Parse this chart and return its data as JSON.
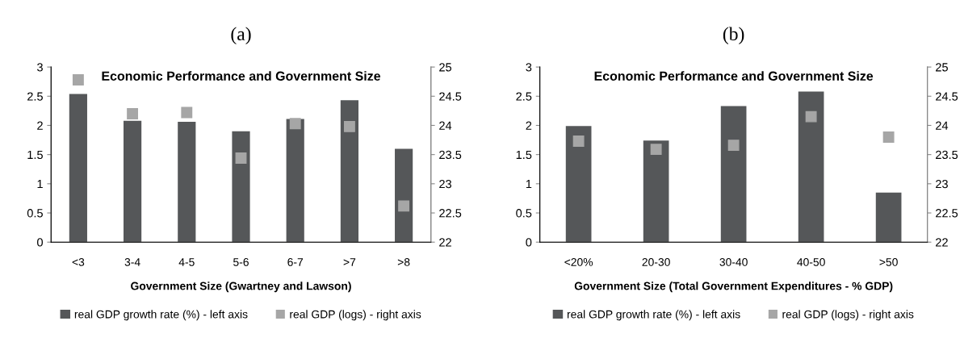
{
  "chart_data": [
    {
      "type": "bar",
      "title": "Economic Performance and Government Size",
      "xlabel": "Government Size (Gwartney and Lawson)",
      "annotations": [
        "(a)"
      ],
      "categories": [
        "<3",
        "3-4",
        "4-5",
        "5-6",
        "6-7",
        ">7",
        ">8"
      ],
      "series": [
        {
          "name": "real GDP growth rate (%) - left axis",
          "color": "#555759",
          "values": [
            2.54,
            2.08,
            2.06,
            1.9,
            2.11,
            2.43,
            1.6
          ]
        },
        {
          "name": "real GDP (logs) - right axis",
          "type": "scatter",
          "axis": "y2",
          "color": "#a6a6a6",
          "values": [
            24.78,
            24.2,
            24.22,
            23.44,
            24.03,
            23.98,
            22.62
          ]
        }
      ],
      "ylim": [
        0,
        3
      ],
      "yticks": [
        0,
        0.5,
        1,
        1.5,
        2,
        2.5,
        3
      ],
      "y2lim": [
        22,
        25
      ],
      "y2ticks": [
        22,
        22.5,
        23,
        23.5,
        24,
        24.5,
        25
      ],
      "marker": "square",
      "grid": false,
      "legend": "bottom"
    },
    {
      "type": "bar",
      "title": "Economic Performance and Government Size",
      "xlabel": "Government Size (Total Government Expenditures - % GDP)",
      "annotations": [
        "(b)"
      ],
      "categories": [
        "<20%",
        "20-30",
        "30-40",
        "40-50",
        ">50"
      ],
      "series": [
        {
          "name": "real GDP growth rate (%) - left axis",
          "color": "#555759",
          "values": [
            1.99,
            1.74,
            2.33,
            2.58,
            0.85
          ]
        },
        {
          "name": "real GDP (logs) - right axis",
          "type": "scatter",
          "axis": "y2",
          "color": "#a6a6a6",
          "values": [
            23.73,
            23.59,
            23.66,
            24.15,
            23.8
          ]
        }
      ],
      "ylim": [
        0,
        3
      ],
      "yticks": [
        0,
        0.5,
        1,
        1.5,
        2,
        2.5,
        3
      ],
      "y2lim": [
        22,
        25
      ],
      "y2ticks": [
        22,
        22.5,
        23,
        23.5,
        24,
        24.5,
        25
      ],
      "marker": "square",
      "grid": false,
      "legend": "bottom"
    }
  ]
}
